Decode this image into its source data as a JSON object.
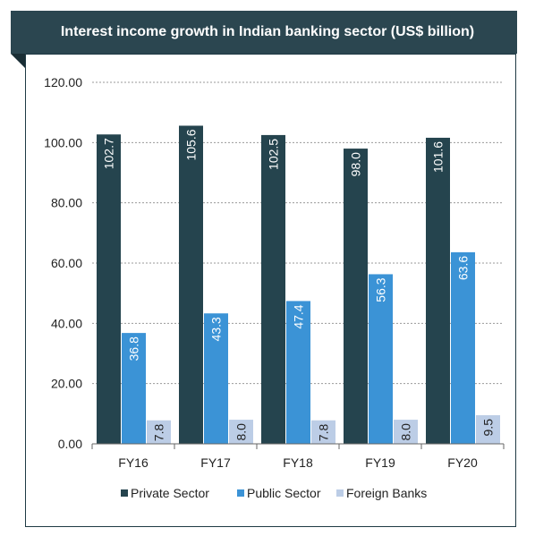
{
  "chart_data": {
    "type": "bar",
    "title": "Interest income growth in Indian banking sector (US$ billion)",
    "categories": [
      "FY16",
      "FY17",
      "FY18",
      "FY19",
      "FY20"
    ],
    "series": [
      {
        "name": "Private Sector",
        "values": [
          102.7,
          105.6,
          102.5,
          98.0,
          101.6
        ],
        "color": "#25444e",
        "label_color": "#ffffff"
      },
      {
        "name": "Public Sector",
        "values": [
          36.8,
          43.3,
          47.4,
          56.3,
          63.6
        ],
        "color": "#3b93d6",
        "label_color": "#ffffff"
      },
      {
        "name": "Foreign Banks",
        "values": [
          7.8,
          8.0,
          7.8,
          8.0,
          9.5
        ],
        "color": "#bccde6",
        "label_color": "#222222"
      }
    ],
    "value_labels": [
      [
        "102.7",
        "105.6",
        "102.5",
        "98.0",
        "101.6"
      ],
      [
        "36.8",
        "43.3",
        "47.4",
        "56.3",
        "63.6"
      ],
      [
        "7.8",
        "8.0",
        "7.8",
        "8.0",
        "9.5"
      ]
    ],
    "ylim": [
      0,
      120
    ],
    "yticks": [
      "0.00",
      "20.00",
      "40.00",
      "60.00",
      "80.00",
      "100.00",
      "120.00"
    ],
    "ytick_values": [
      0,
      20,
      40,
      60,
      80,
      100,
      120
    ],
    "grid": true,
    "legend": "bottom",
    "xlabel": "",
    "ylabel": ""
  }
}
